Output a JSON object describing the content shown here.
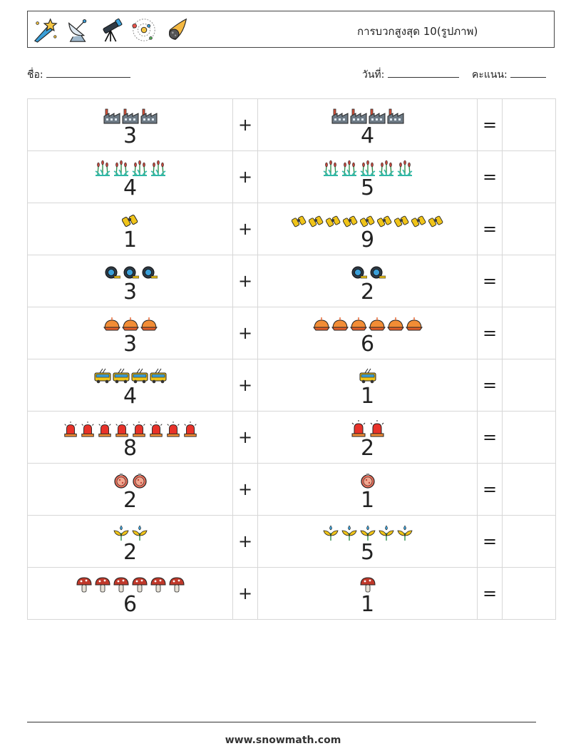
{
  "header": {
    "title": "การบวกสูงสุด 10(รูปภาพ)",
    "icons": [
      "shooting-star-icon",
      "satellite-dish-icon",
      "telescope-icon",
      "solar-system-icon",
      "comet-icon"
    ]
  },
  "fields": {
    "name_label": "ชื่อ:",
    "date_label": "วันที่:",
    "score_label": "คะแนน:"
  },
  "operators": {
    "plus": "+",
    "equals": "="
  },
  "problems": [
    {
      "left": {
        "count": 3,
        "icon": "factory"
      },
      "right": {
        "count": 4,
        "icon": "factory"
      }
    },
    {
      "left": {
        "count": 4,
        "icon": "reeds"
      },
      "right": {
        "count": 5,
        "icon": "reeds"
      }
    },
    {
      "left": {
        "count": 1,
        "icon": "binoculars"
      },
      "right": {
        "count": 9,
        "icon": "binoculars"
      }
    },
    {
      "left": {
        "count": 3,
        "icon": "tape-measure"
      },
      "right": {
        "count": 2,
        "icon": "tape-measure"
      }
    },
    {
      "left": {
        "count": 3,
        "icon": "pie"
      },
      "right": {
        "count": 6,
        "icon": "pie"
      }
    },
    {
      "left": {
        "count": 4,
        "icon": "trolleybus"
      },
      "right": {
        "count": 1,
        "icon": "trolleybus"
      }
    },
    {
      "left": {
        "count": 8,
        "icon": "siren"
      },
      "right": {
        "count": 2,
        "icon": "siren"
      }
    },
    {
      "left": {
        "count": 2,
        "icon": "ornament"
      },
      "right": {
        "count": 1,
        "icon": "ornament"
      }
    },
    {
      "left": {
        "count": 2,
        "icon": "sprout"
      },
      "right": {
        "count": 5,
        "icon": "sprout"
      }
    },
    {
      "left": {
        "count": 6,
        "icon": "mushroom"
      },
      "right": {
        "count": 1,
        "icon": "mushroom"
      }
    }
  ],
  "footer": {
    "website": "www.snowmath.com"
  }
}
